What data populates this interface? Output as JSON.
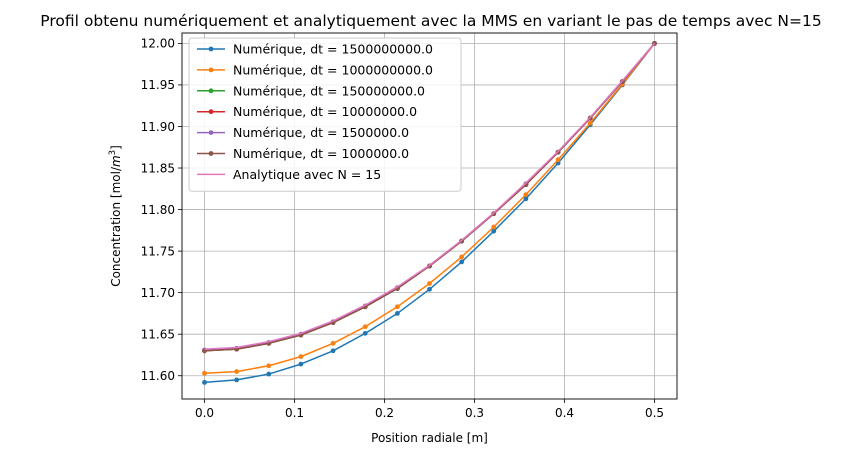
{
  "chart_data": {
    "type": "line",
    "title": "Profil obtenu numériquement et analytiquement avec la MMS en variant le pas de temps avec N=15",
    "xlabel": "Position radiale [m]",
    "ylabel_main": "Concentration [mol/",
    "ylabel_unit_base": "m",
    "ylabel_unit_exp": "3",
    "ylabel_close": "]",
    "xlim": [
      -0.025,
      0.525
    ],
    "ylim": [
      11.572,
      12.0125
    ],
    "xticks": [
      0.0,
      0.1,
      0.2,
      0.3,
      0.4,
      0.5
    ],
    "xtick_labels": [
      "0.0",
      "0.1",
      "0.2",
      "0.3",
      "0.4",
      "0.5"
    ],
    "yticks": [
      11.6,
      11.65,
      11.7,
      11.75,
      11.8,
      11.85,
      11.9,
      11.95,
      12.0
    ],
    "ytick_labels": [
      "11.60",
      "11.65",
      "11.70",
      "11.75",
      "11.80",
      "11.85",
      "11.90",
      "11.95",
      "12.00"
    ],
    "grid": true,
    "legend_position": "top-left",
    "x": [
      0.0,
      0.0357,
      0.0714,
      0.1071,
      0.1429,
      0.1786,
      0.2143,
      0.25,
      0.2857,
      0.3214,
      0.3571,
      0.3929,
      0.4286,
      0.4643,
      0.5
    ],
    "series": [
      {
        "name": "Numérique, dt = 1500000000.0",
        "color": "#1f77b4",
        "marker": true,
        "values": [
          11.592,
          11.595,
          11.602,
          11.614,
          11.63,
          11.651,
          11.675,
          11.704,
          11.737,
          11.774,
          11.813,
          11.856,
          11.902,
          11.95,
          12.0
        ]
      },
      {
        "name": "Numérique, dt = 1000000000.0",
        "color": "#ff7f0e",
        "marker": true,
        "values": [
          11.603,
          11.605,
          11.612,
          11.623,
          11.639,
          11.659,
          11.683,
          11.711,
          11.743,
          11.779,
          11.818,
          11.86,
          11.904,
          11.951,
          12.0
        ]
      },
      {
        "name": "Numérique, dt = 150000000.0",
        "color": "#2ca02c",
        "marker": true,
        "values": [
          11.63,
          11.632,
          11.639,
          11.649,
          11.664,
          11.683,
          11.705,
          11.732,
          11.762,
          11.795,
          11.83,
          11.869,
          11.91,
          11.954,
          12.0
        ]
      },
      {
        "name": "Numérique, dt = 10000000.0",
        "color": "#d62728",
        "marker": true,
        "values": [
          11.63,
          11.632,
          11.639,
          11.649,
          11.664,
          11.683,
          11.705,
          11.732,
          11.762,
          11.795,
          11.83,
          11.869,
          11.91,
          11.954,
          12.0
        ]
      },
      {
        "name": "Numérique, dt = 1500000.0",
        "color": "#9467bd",
        "marker": true,
        "values": [
          11.631,
          11.633,
          11.64,
          11.65,
          11.665,
          11.684,
          11.706,
          11.732,
          11.762,
          11.795,
          11.831,
          11.869,
          11.91,
          11.954,
          12.0
        ]
      },
      {
        "name": "Numérique, dt = 1000000.0",
        "color": "#8c564b",
        "marker": true,
        "values": [
          11.63,
          11.632,
          11.639,
          11.649,
          11.664,
          11.683,
          11.705,
          11.732,
          11.762,
          11.795,
          11.83,
          11.869,
          11.91,
          11.954,
          12.0
        ]
      },
      {
        "name": "Analytique avec N = 15",
        "color": "#e377c2",
        "marker": false,
        "values": [
          11.632,
          11.634,
          11.641,
          11.651,
          11.666,
          11.685,
          11.707,
          11.733,
          11.763,
          11.796,
          11.832,
          11.87,
          11.911,
          11.955,
          12.0
        ]
      }
    ]
  }
}
